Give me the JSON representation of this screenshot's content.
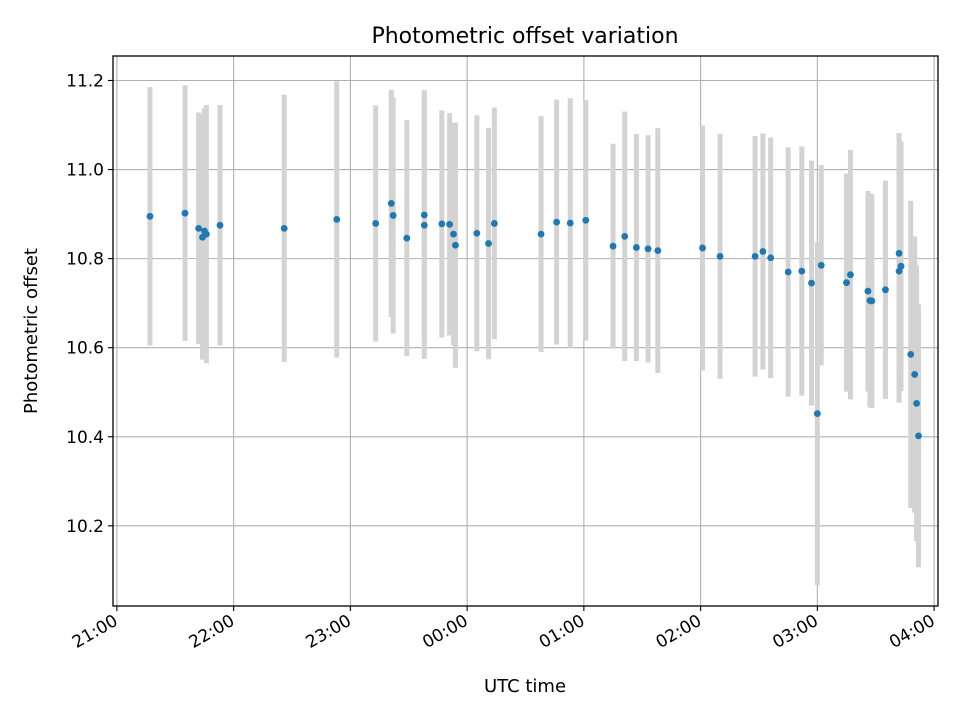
{
  "chart_data": {
    "type": "scatter",
    "title": "Photometric offset variation",
    "xlabel": "UTC time",
    "ylabel": "Photometric offset",
    "grid": true,
    "xlim": [
      "20:58",
      "04:02"
    ],
    "ylim": [
      10.02,
      11.255
    ],
    "x_ticks": [
      "21:00",
      "22:00",
      "23:00",
      "00:00",
      "01:00",
      "02:00",
      "03:00",
      "04:00"
    ],
    "y_ticks": [
      "10.2",
      "10.4",
      "10.6",
      "10.8",
      "11.0",
      "11.2"
    ],
    "colors": {
      "points": "#1f77b4",
      "error_bars": "#d3d3d3",
      "grid": "#b0b0b0"
    },
    "series": [
      {
        "x": [
          "21:17",
          "21:35",
          "21:42",
          "21:44",
          "21:45",
          "21:46",
          "21:53",
          "22:26",
          "22:53",
          "23:13",
          "23:21",
          "23:22",
          "23:29",
          "23:38",
          "23:38",
          "23:47",
          "23:51",
          "23:53",
          "23:54",
          "00:05",
          "00:11",
          "00:14",
          "00:38",
          "00:46",
          "00:53",
          "01:01",
          "01:15",
          "01:21",
          "01:27",
          "01:33",
          "01:38",
          "02:01",
          "02:10",
          "02:28",
          "02:32",
          "02:36",
          "02:45",
          "02:52",
          "02:57",
          "03:00",
          "03:02",
          "03:15",
          "03:17",
          "03:26",
          "03:27",
          "03:28",
          "03:35",
          "03:42",
          "03:42",
          "03:43",
          "03:48",
          "03:50",
          "03:51",
          "03:52"
        ],
        "y": [
          10.895,
          10.902,
          10.868,
          10.848,
          10.862,
          10.855,
          10.875,
          10.868,
          10.888,
          10.879,
          10.924,
          10.897,
          10.846,
          10.898,
          10.875,
          10.878,
          10.877,
          10.855,
          10.83,
          10.857,
          10.834,
          10.879,
          10.855,
          10.882,
          10.88,
          10.886,
          10.828,
          10.85,
          10.825,
          10.822,
          10.818,
          10.824,
          10.805,
          10.805,
          10.816,
          10.802,
          10.77,
          10.772,
          10.745,
          10.452,
          10.785,
          10.746,
          10.764,
          10.727,
          10.706,
          10.705,
          10.73,
          10.812,
          10.772,
          10.783,
          10.585,
          10.54,
          10.475,
          10.402
        ],
        "yerr": [
          0.29,
          0.287,
          0.26,
          0.275,
          0.275,
          0.29,
          0.27,
          0.3,
          0.31,
          0.265,
          0.255,
          0.265,
          0.265,
          0.28,
          0.3,
          0.255,
          0.25,
          0.25,
          0.275,
          0.265,
          0.26,
          0.26,
          0.265,
          0.275,
          0.28,
          0.27,
          0.23,
          0.28,
          0.255,
          0.255,
          0.275,
          0.275,
          0.275,
          0.27,
          0.265,
          0.27,
          0.28,
          0.28,
          0.275,
          0.385,
          0.225,
          0.245,
          0.28,
          0.225,
          0.24,
          0.24,
          0.245,
          0.27,
          0.295,
          0.28,
          0.345,
          0.31,
          0.31,
          0.295
        ]
      }
    ]
  }
}
